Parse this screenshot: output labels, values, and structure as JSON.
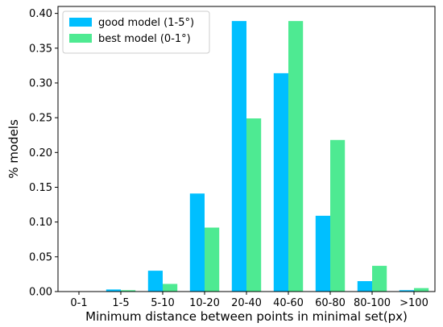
{
  "chart_data": {
    "type": "bar",
    "categories": [
      "0-1",
      "1-5",
      "5-10",
      "10-20",
      "20-40",
      "40-60",
      "60-80",
      "80-100",
      ">100"
    ],
    "series": [
      {
        "name": "good model (1-5°)",
        "color": "#00bfff",
        "values": [
          0.0,
          0.003,
          0.03,
          0.141,
          0.389,
          0.314,
          0.109,
          0.015,
          0.002
        ]
      },
      {
        "name": "best model (0-1°)",
        "color": "#4eea92",
        "values": [
          0.0,
          0.002,
          0.011,
          0.092,
          0.249,
          0.389,
          0.218,
          0.037,
          0.005
        ]
      }
    ],
    "title": "",
    "xlabel": "Minimum distance between points in minimal set(px)",
    "ylabel": "% models",
    "ylim": [
      0,
      0.41
    ],
    "yticks": [
      "0.00",
      "0.05",
      "0.10",
      "0.15",
      "0.20",
      "0.25",
      "0.30",
      "0.35",
      "0.40"
    ],
    "grid": false,
    "legend_position": "top-left"
  }
}
